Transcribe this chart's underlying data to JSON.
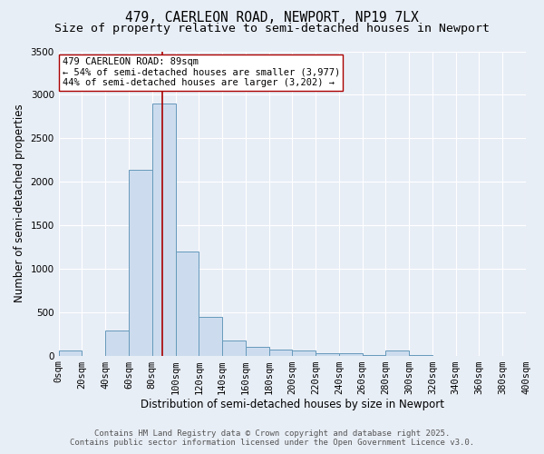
{
  "title_line1": "479, CAERLEON ROAD, NEWPORT, NP19 7LX",
  "title_line2": "Size of property relative to semi-detached houses in Newport",
  "xlabel": "Distribution of semi-detached houses by size in Newport",
  "ylabel": "Number of semi-detached properties",
  "bin_edges": [
    0,
    20,
    40,
    60,
    80,
    100,
    120,
    140,
    160,
    180,
    200,
    220,
    240,
    260,
    280,
    300,
    320,
    340,
    360,
    380,
    400
  ],
  "bar_heights": [
    55,
    0,
    290,
    2140,
    2900,
    1200,
    450,
    175,
    105,
    65,
    55,
    30,
    30,
    10,
    55,
    10,
    0,
    0,
    0,
    0
  ],
  "bar_color": "#ccdcee",
  "bar_edge_color": "#6699bb",
  "property_size": 89,
  "vline_color": "#aa0000",
  "annotation_text": "479 CAERLEON ROAD: 89sqm\n← 54% of semi-detached houses are smaller (3,977)\n44% of semi-detached houses are larger (3,202) →",
  "annotation_box_color": "#ffffff",
  "annotation_box_edge_color": "#aa0000",
  "ylim": [
    0,
    3500
  ],
  "yticks": [
    0,
    500,
    1000,
    1500,
    2000,
    2500,
    3000,
    3500
  ],
  "bg_color": "#e8eef6",
  "plot_bg_color": "#e8eef6",
  "footer_line1": "Contains HM Land Registry data © Crown copyright and database right 2025.",
  "footer_line2": "Contains public sector information licensed under the Open Government Licence v3.0.",
  "title_fontsize": 10.5,
  "subtitle_fontsize": 9.5,
  "axis_label_fontsize": 8.5,
  "tick_fontsize": 7.5,
  "annotation_fontsize": 7.5,
  "footer_fontsize": 6.5
}
